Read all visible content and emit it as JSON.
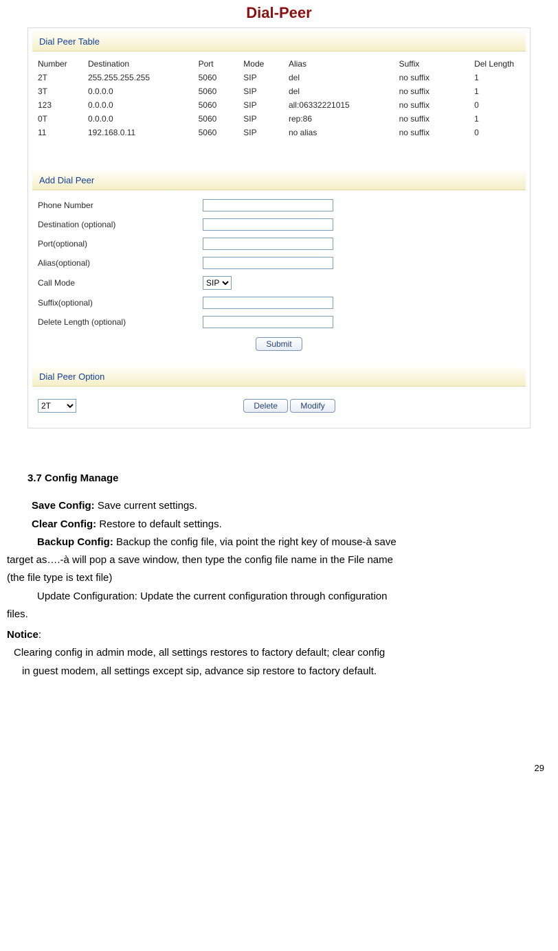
{
  "title": "Dial-Peer",
  "sections": {
    "table_head": "Dial Peer Table",
    "add_head": "Add Dial Peer",
    "opt_head": "Dial Peer Option"
  },
  "table": {
    "columns": [
      "Number",
      "Destination",
      "Port",
      "Mode",
      "Alias",
      "Suffix",
      "Del Length"
    ],
    "rows": [
      [
        "2T",
        "255.255.255.255",
        "5060",
        "SIP",
        "del",
        "no suffix",
        "1"
      ],
      [
        "3T",
        "0.0.0.0",
        "5060",
        "SIP",
        "del",
        "no suffix",
        "1"
      ],
      [
        "123",
        "0.0.0.0",
        "5060",
        "SIP",
        "all:06332221015",
        "no suffix",
        "0"
      ],
      [
        "0T",
        "0.0.0.0",
        "5060",
        "SIP",
        "rep:86",
        "no suffix",
        "1"
      ],
      [
        "11",
        "192.168.0.11",
        "5060",
        "SIP",
        "no alias",
        "no suffix",
        "0"
      ]
    ]
  },
  "form": {
    "labels": {
      "phone": "Phone Number",
      "dest": "Destination (optional)",
      "port": "Port(optional)",
      "alias": "Alias(optional)",
      "mode": "Call Mode",
      "suffix": "Suffix(optional)",
      "delete_len": "Delete Length (optional)"
    },
    "mode_value": "SIP",
    "submit": "Submit"
  },
  "option": {
    "select_value": "2T",
    "delete": "Delete",
    "modify": "Modify"
  },
  "doc": {
    "heading": "3.7 Config Manage",
    "save_label": "Save Config:",
    "save_text": " Save current settings.",
    "clear_label": "Clear Config:",
    "clear_text": " Restore to default settings.",
    "backup_label": "Backup Config:",
    "backup_text_1": " Backup the config file, via point the right key of mouse-à  save",
    "backup_text_2": "target as….-à will pop a save window, then type the config file name in the File name",
    "backup_text_3": "(the file type is text file)",
    "update_text_1": "Update Configuration: Update the current configuration through configuration",
    "update_text_2": "files.",
    "notice_label": "Notice",
    "notice_colon": ":",
    "notice_text_1": "Clearing config in admin mode, all settings restores to factory default; clear config",
    "notice_text_2": "in guest modem, all settings except sip, advance sip restore to factory default."
  },
  "page_number": "29"
}
